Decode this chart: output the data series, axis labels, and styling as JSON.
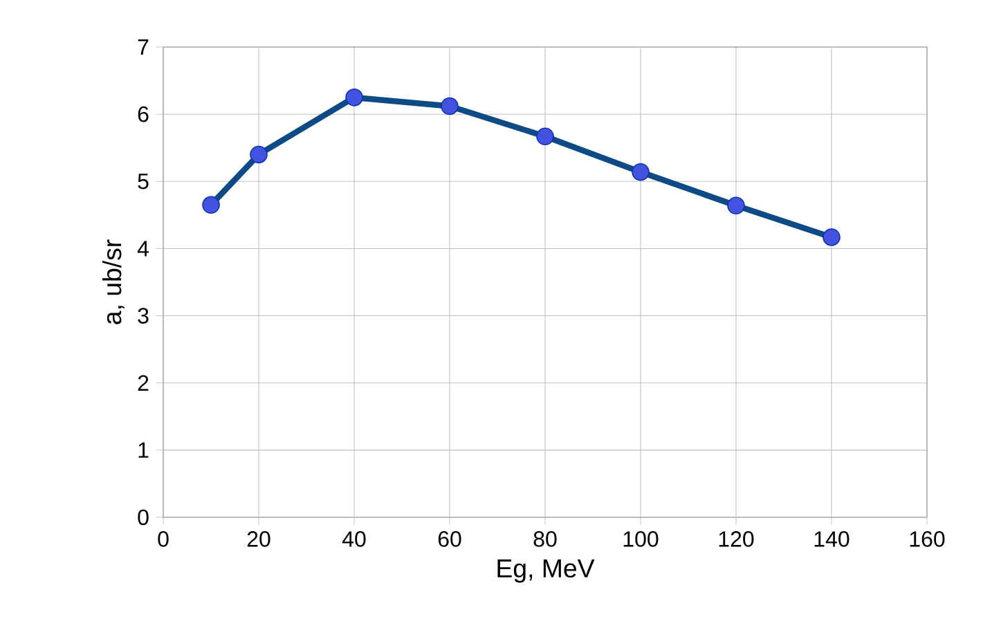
{
  "chart_data": {
    "type": "line",
    "xlabel": "Eg, MeV",
    "ylabel": "a, ub/sr",
    "x": [
      10,
      20,
      40,
      60,
      80,
      100,
      120,
      140
    ],
    "series": [
      {
        "color": "#0d4a86",
        "values": [
          4.65,
          5.4,
          6.25,
          6.12,
          5.67,
          5.14,
          4.64,
          4.17
        ]
      }
    ],
    "xlim": [
      0,
      160
    ],
    "xticks": [
      0,
      20,
      40,
      60,
      80,
      100,
      120,
      140,
      160
    ],
    "ylim": [
      0,
      7
    ],
    "yticks": [
      0,
      1,
      2,
      3,
      4,
      5,
      6,
      7
    ],
    "grid": true,
    "marker": "circle",
    "line_style": "solid"
  }
}
